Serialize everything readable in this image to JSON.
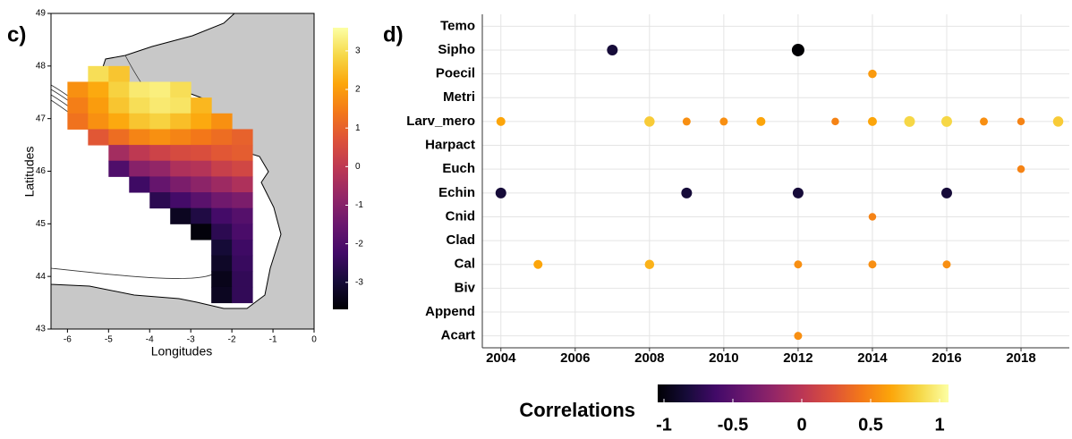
{
  "chart_data": [
    {
      "type": "heatmap",
      "label": "c)",
      "xlabel": "Longitudes",
      "ylabel": "Latitudes",
      "xlim": [
        -6.4,
        0
      ],
      "ylim": [
        43,
        49
      ],
      "xticks": [
        -6,
        -5,
        -4,
        -3,
        -2,
        -1,
        0
      ],
      "yticks": [
        43,
        44,
        45,
        46,
        47,
        48,
        49
      ],
      "x": [
        -5.25,
        -4.75,
        -5.75,
        -5.25,
        -4.75,
        -4.25,
        -3.75,
        -3.25,
        -5.75,
        -5.25,
        -4.75,
        -4.25,
        -3.75,
        -3.25,
        -2.75,
        -5.75,
        -5.25,
        -4.75,
        -4.25,
        -3.75,
        -3.25,
        -2.75,
        -2.25,
        -5.25,
        -4.75,
        -4.25,
        -3.75,
        -3.25,
        -2.75,
        -2.25,
        -1.75,
        -4.75,
        -4.25,
        -3.75,
        -3.25,
        -2.75,
        -2.25,
        -1.75,
        -4.75,
        -4.25,
        -3.75,
        -3.25,
        -2.75,
        -2.25,
        -1.75,
        -4.25,
        -3.75,
        -3.25,
        -2.75,
        -2.25,
        -1.75,
        -3.75,
        -3.25,
        -2.75,
        -2.25,
        -1.75,
        -3.25,
        -2.75,
        -2.25,
        -1.75,
        -2.75,
        -2.25,
        -1.75,
        -2.25,
        -1.75,
        -2.25,
        -1.75,
        -2.25,
        -1.75,
        -2.25,
        -1.75
      ],
      "y": [
        47.85,
        47.85,
        47.55,
        47.55,
        47.55,
        47.55,
        47.55,
        47.55,
        47.25,
        47.25,
        47.25,
        47.25,
        47.25,
        47.25,
        47.25,
        46.95,
        46.95,
        46.95,
        46.95,
        46.95,
        46.95,
        46.95,
        46.95,
        46.65,
        46.65,
        46.65,
        46.65,
        46.65,
        46.65,
        46.65,
        46.65,
        46.35,
        46.35,
        46.35,
        46.35,
        46.35,
        46.35,
        46.35,
        46.05,
        46.05,
        46.05,
        46.05,
        46.05,
        46.05,
        46.05,
        45.75,
        45.75,
        45.75,
        45.75,
        45.75,
        45.75,
        45.45,
        45.45,
        45.45,
        45.45,
        45.45,
        45.15,
        45.15,
        45.15,
        45.15,
        44.85,
        44.85,
        44.85,
        44.55,
        44.55,
        44.25,
        44.25,
        43.95,
        43.95,
        43.65,
        43.65
      ],
      "values": [
        3.0,
        2.6,
        1.8,
        2.2,
        2.8,
        3.2,
        3.3,
        3.0,
        1.5,
        2.0,
        2.6,
        3.0,
        3.2,
        3.1,
        2.4,
        1.3,
        1.8,
        2.2,
        2.6,
        2.8,
        2.5,
        2.2,
        1.8,
        0.8,
        1.2,
        1.6,
        1.8,
        1.6,
        1.4,
        1.2,
        1.0,
        -0.5,
        0.0,
        0.3,
        0.5,
        0.6,
        0.8,
        0.9,
        -2.0,
        -1.0,
        -0.8,
        -0.3,
        -0.2,
        0.2,
        0.4,
        -2.3,
        -1.6,
        -1.2,
        -0.9,
        -0.6,
        -0.3,
        -2.6,
        -2.2,
        -1.8,
        -1.4,
        -1.2,
        -3.3,
        -2.8,
        -2.2,
        -1.9,
        -3.6,
        -2.6,
        -2.1,
        -3.0,
        -2.3,
        -3.2,
        -2.4,
        -3.4,
        -2.5,
        -3.3,
        -2.5
      ],
      "colorbar": {
        "lim": [
          -3.7,
          3.6
        ],
        "ticks": [
          -3,
          -2,
          -1,
          0,
          1,
          2,
          3
        ]
      }
    },
    {
      "type": "scatter",
      "label": "d)",
      "categories": [
        "Temo",
        "Sipho",
        "Poecil",
        "Metri",
        "Larv_mero",
        "Harpact",
        "Euch",
        "Echin",
        "Cnid",
        "Clad",
        "Cal",
        "Biv",
        "Append",
        "Acart"
      ],
      "xlim": [
        2003.5,
        2019.3
      ],
      "xticks": [
        2004,
        2006,
        2008,
        2010,
        2012,
        2014,
        2016,
        2018
      ],
      "grid": true,
      "x": [
        2007,
        2012,
        2014,
        2004,
        2008,
        2009,
        2010,
        2011,
        2013,
        2014,
        2015,
        2016,
        2017,
        2018,
        2019,
        2018,
        2004,
        2009,
        2012,
        2016,
        2014,
        2005,
        2008,
        2012,
        2014,
        2016,
        2012
      ],
      "y": [
        "Sipho",
        "Sipho",
        "Poecil",
        "Larv_mero",
        "Larv_mero",
        "Larv_mero",
        "Larv_mero",
        "Larv_mero",
        "Larv_mero",
        "Larv_mero",
        "Larv_mero",
        "Larv_mero",
        "Larv_mero",
        "Larv_mero",
        "Larv_mero",
        "Euch",
        "Echin",
        "Echin",
        "Echin",
        "Echin",
        "Cnid",
        "Cal",
        "Cal",
        "Cal",
        "Cal",
        "Cal",
        "Acart"
      ],
      "values": [
        -0.8,
        -1.0,
        0.55,
        0.6,
        0.75,
        0.5,
        0.5,
        0.6,
        0.45,
        0.6,
        0.8,
        0.8,
        0.5,
        0.45,
        0.75,
        0.45,
        -0.8,
        -0.8,
        -0.8,
        -0.8,
        0.45,
        0.6,
        0.65,
        0.5,
        0.5,
        0.5,
        0.5
      ],
      "colorbar": {
        "title": "Correlations",
        "lim": [
          -1,
          1
        ],
        "ticks": [
          -1,
          -0.5,
          0,
          0.5,
          1
        ]
      }
    }
  ]
}
